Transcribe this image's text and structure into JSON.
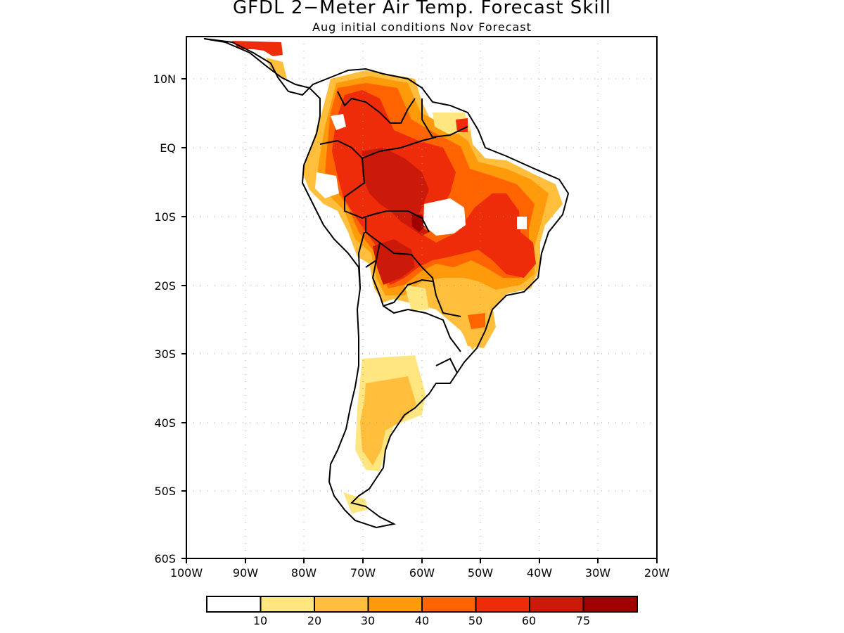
{
  "title": "GFDL 2−Meter Air Temp. Forecast Skill",
  "subtitle": "Aug initial conditions  Nov Forecast",
  "map": {
    "region": "South America",
    "lon_range": [
      -100,
      -20
    ],
    "lat_range": [
      -60,
      15
    ],
    "lat_ticks": [
      "10N",
      "EQ",
      "10S",
      "20S",
      "30S",
      "40S",
      "50S",
      "60S"
    ],
    "lon_ticks": [
      "100W",
      "90W",
      "80W",
      "70W",
      "60W",
      "50W",
      "40W",
      "30W",
      "20W"
    ],
    "grid": "dotted"
  },
  "colorbar": {
    "labels": [
      "10",
      "20",
      "30",
      "40",
      "50",
      "60",
      "75"
    ],
    "colors": [
      "#ffffff",
      "#ffe680",
      "#ffbe3c",
      "#ff9b0a",
      "#ff6400",
      "#ee2c0a",
      "#cc1a0a",
      "#a00000"
    ]
  }
}
